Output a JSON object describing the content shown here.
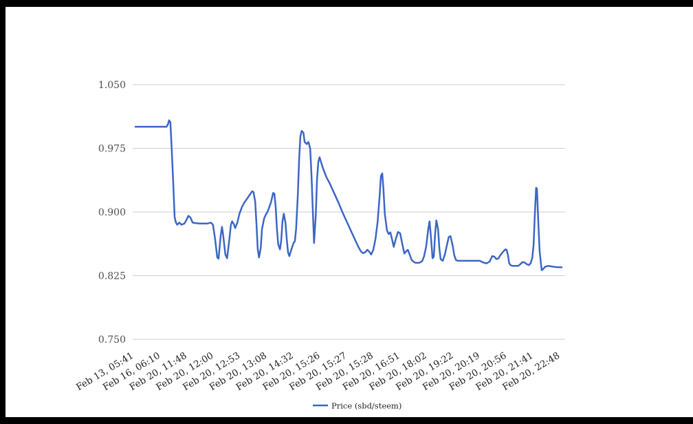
{
  "window": {
    "frame_color": "#000000",
    "canvas_color": "#ffffff"
  },
  "chart_data": {
    "type": "line",
    "title": "",
    "xlabel": "",
    "ylabel": "",
    "grid": true,
    "legend": {
      "position": "bottom",
      "entries": [
        {
          "label": "Price (sbd/steem)",
          "color": "#3b66c4"
        }
      ]
    },
    "colors": {
      "line": "#3b66c4",
      "gridline": "#cccccc",
      "y_tick_text": "#4d4d4d",
      "x_tick_text": "#222222",
      "legend_text": "#222222"
    },
    "y_axis": {
      "min": 0.75,
      "max": 1.05,
      "ticks": [
        0.75,
        0.825,
        0.9,
        0.975,
        1.05
      ],
      "tick_labels": [
        "0.750",
        "0.825",
        "0.900",
        "0.975",
        "1.050"
      ]
    },
    "x_axis": {
      "rotation_deg": -31,
      "tick_labels": [
        "Feb 13, 05:41",
        "Feb 16, 06:10",
        "Feb 20, 11:48",
        "Feb 20, 12:00",
        "Feb 20, 12:53",
        "Feb 20, 13:08",
        "Feb 20, 14:32",
        "Feb 20, 15:26",
        "Feb 20, 15:27",
        "Feb 20, 15:28",
        "Feb 20, 16:51",
        "Feb 20, 18:02",
        "Feb 20, 19:22",
        "Feb 20, 20:19",
        "Feb 20, 20:56",
        "Feb 20, 21:41",
        "Feb 20, 22:48"
      ]
    },
    "series": [
      {
        "name": "Price (sbd/steem)",
        "points": [
          [
            0.0,
            1.0005
          ],
          [
            0.029,
            1.0005
          ],
          [
            0.061,
            1.0005
          ],
          [
            0.073,
            1.0005
          ],
          [
            0.076,
            1.003
          ],
          [
            0.079,
            1.008
          ],
          [
            0.082,
            1.006
          ],
          [
            0.085,
            0.975
          ],
          [
            0.089,
            0.93
          ],
          [
            0.092,
            0.894
          ],
          [
            0.095,
            0.8875
          ],
          [
            0.098,
            0.885
          ],
          [
            0.103,
            0.8875
          ],
          [
            0.108,
            0.885
          ],
          [
            0.115,
            0.8865
          ],
          [
            0.119,
            0.89
          ],
          [
            0.124,
            0.8955
          ],
          [
            0.129,
            0.8935
          ],
          [
            0.134,
            0.8875
          ],
          [
            0.14,
            0.887
          ],
          [
            0.15,
            0.8865
          ],
          [
            0.16,
            0.8865
          ],
          [
            0.169,
            0.8865
          ],
          [
            0.177,
            0.8875
          ],
          [
            0.182,
            0.885
          ],
          [
            0.187,
            0.868
          ],
          [
            0.192,
            0.8465
          ],
          [
            0.195,
            0.845
          ],
          [
            0.2,
            0.872
          ],
          [
            0.203,
            0.8825
          ],
          [
            0.206,
            0.872
          ],
          [
            0.211,
            0.85
          ],
          [
            0.215,
            0.8455
          ],
          [
            0.219,
            0.862
          ],
          [
            0.224,
            0.885
          ],
          [
            0.227,
            0.889
          ],
          [
            0.231,
            0.8855
          ],
          [
            0.234,
            0.881
          ],
          [
            0.239,
            0.8875
          ],
          [
            0.244,
            0.898
          ],
          [
            0.25,
            0.906
          ],
          [
            0.256,
            0.9115
          ],
          [
            0.263,
            0.9165
          ],
          [
            0.269,
            0.921
          ],
          [
            0.274,
            0.9245
          ],
          [
            0.277,
            0.9235
          ],
          [
            0.281,
            0.912
          ],
          [
            0.284,
            0.885
          ],
          [
            0.287,
            0.856
          ],
          [
            0.29,
            0.8465
          ],
          [
            0.294,
            0.858
          ],
          [
            0.297,
            0.88
          ],
          [
            0.302,
            0.8925
          ],
          [
            0.306,
            0.897
          ],
          [
            0.311,
            0.9015
          ],
          [
            0.318,
            0.9115
          ],
          [
            0.323,
            0.9225
          ],
          [
            0.326,
            0.9215
          ],
          [
            0.329,
            0.906
          ],
          [
            0.332,
            0.88
          ],
          [
            0.335,
            0.862
          ],
          [
            0.339,
            0.856
          ],
          [
            0.342,
            0.866
          ],
          [
            0.345,
            0.889
          ],
          [
            0.348,
            0.898
          ],
          [
            0.352,
            0.8875
          ],
          [
            0.355,
            0.868
          ],
          [
            0.358,
            0.8525
          ],
          [
            0.361,
            0.848
          ],
          [
            0.366,
            0.856
          ],
          [
            0.371,
            0.8635
          ],
          [
            0.374,
            0.8655
          ],
          [
            0.377,
            0.88
          ],
          [
            0.381,
            0.92
          ],
          [
            0.384,
            0.962
          ],
          [
            0.387,
            0.989
          ],
          [
            0.39,
            0.9955
          ],
          [
            0.394,
            0.9935
          ],
          [
            0.397,
            0.9825
          ],
          [
            0.402,
            0.98
          ],
          [
            0.406,
            0.9825
          ],
          [
            0.41,
            0.9745
          ],
          [
            0.413,
            0.943
          ],
          [
            0.416,
            0.904
          ],
          [
            0.419,
            0.8635
          ],
          [
            0.423,
            0.896
          ],
          [
            0.426,
            0.938
          ],
          [
            0.429,
            0.959
          ],
          [
            0.432,
            0.9645
          ],
          [
            0.435,
            0.9595
          ],
          [
            0.44,
            0.9515
          ],
          [
            0.448,
            0.941
          ],
          [
            0.456,
            0.9335
          ],
          [
            0.466,
            0.9225
          ],
          [
            0.476,
            0.9115
          ],
          [
            0.485,
            0.9005
          ],
          [
            0.495,
            0.8895
          ],
          [
            0.505,
            0.8785
          ],
          [
            0.515,
            0.8675
          ],
          [
            0.523,
            0.859
          ],
          [
            0.529,
            0.8535
          ],
          [
            0.534,
            0.8515
          ],
          [
            0.539,
            0.8525
          ],
          [
            0.544,
            0.8555
          ],
          [
            0.548,
            0.8535
          ],
          [
            0.553,
            0.85
          ],
          [
            0.558,
            0.8555
          ],
          [
            0.563,
            0.868
          ],
          [
            0.568,
            0.888
          ],
          [
            0.573,
            0.92
          ],
          [
            0.576,
            0.9425
          ],
          [
            0.579,
            0.9455
          ],
          [
            0.582,
            0.926
          ],
          [
            0.585,
            0.898
          ],
          [
            0.59,
            0.8785
          ],
          [
            0.594,
            0.874
          ],
          [
            0.598,
            0.876
          ],
          [
            0.603,
            0.8655
          ],
          [
            0.606,
            0.859
          ],
          [
            0.611,
            0.8685
          ],
          [
            0.616,
            0.8765
          ],
          [
            0.621,
            0.875
          ],
          [
            0.626,
            0.8625
          ],
          [
            0.631,
            0.851
          ],
          [
            0.635,
            0.8535
          ],
          [
            0.639,
            0.8555
          ],
          [
            0.644,
            0.849
          ],
          [
            0.648,
            0.8435
          ],
          [
            0.655,
            0.8405
          ],
          [
            0.661,
            0.84
          ],
          [
            0.668,
            0.8405
          ],
          [
            0.673,
            0.8425
          ],
          [
            0.677,
            0.8475
          ],
          [
            0.682,
            0.859
          ],
          [
            0.687,
            0.88
          ],
          [
            0.69,
            0.889
          ],
          [
            0.694,
            0.866
          ],
          [
            0.697,
            0.8455
          ],
          [
            0.7,
            0.8475
          ],
          [
            0.703,
            0.874
          ],
          [
            0.706,
            0.89
          ],
          [
            0.71,
            0.88
          ],
          [
            0.713,
            0.857
          ],
          [
            0.716,
            0.8445
          ],
          [
            0.721,
            0.8425
          ],
          [
            0.726,
            0.85
          ],
          [
            0.731,
            0.8615
          ],
          [
            0.735,
            0.8705
          ],
          [
            0.739,
            0.8715
          ],
          [
            0.744,
            0.861
          ],
          [
            0.748,
            0.849
          ],
          [
            0.752,
            0.8435
          ],
          [
            0.756,
            0.8425
          ],
          [
            0.763,
            0.8425
          ],
          [
            0.771,
            0.8425
          ],
          [
            0.779,
            0.8425
          ],
          [
            0.789,
            0.8425
          ],
          [
            0.798,
            0.8425
          ],
          [
            0.808,
            0.8425
          ],
          [
            0.816,
            0.8405
          ],
          [
            0.824,
            0.8395
          ],
          [
            0.831,
            0.8415
          ],
          [
            0.837,
            0.848
          ],
          [
            0.842,
            0.8475
          ],
          [
            0.847,
            0.8445
          ],
          [
            0.852,
            0.8455
          ],
          [
            0.856,
            0.849
          ],
          [
            0.863,
            0.8535
          ],
          [
            0.868,
            0.856
          ],
          [
            0.871,
            0.8555
          ],
          [
            0.874,
            0.849
          ],
          [
            0.877,
            0.8395
          ],
          [
            0.881,
            0.837
          ],
          [
            0.885,
            0.8365
          ],
          [
            0.892,
            0.8365
          ],
          [
            0.898,
            0.8365
          ],
          [
            0.903,
            0.8385
          ],
          [
            0.908,
            0.841
          ],
          [
            0.913,
            0.8405
          ],
          [
            0.918,
            0.8385
          ],
          [
            0.923,
            0.8375
          ],
          [
            0.927,
            0.8395
          ],
          [
            0.931,
            0.846
          ],
          [
            0.934,
            0.861
          ],
          [
            0.937,
            0.896
          ],
          [
            0.94,
            0.9285
          ],
          [
            0.942,
            0.9275
          ],
          [
            0.945,
            0.89
          ],
          [
            0.948,
            0.855
          ],
          [
            0.952,
            0.8365
          ],
          [
            0.953,
            0.8315
          ],
          [
            0.956,
            0.8325
          ],
          [
            0.961,
            0.8355
          ],
          [
            0.968,
            0.8365
          ],
          [
            0.974,
            0.836
          ],
          [
            0.982,
            0.8355
          ],
          [
            0.99,
            0.835
          ],
          [
            1.0,
            0.835
          ]
        ]
      }
    ]
  }
}
